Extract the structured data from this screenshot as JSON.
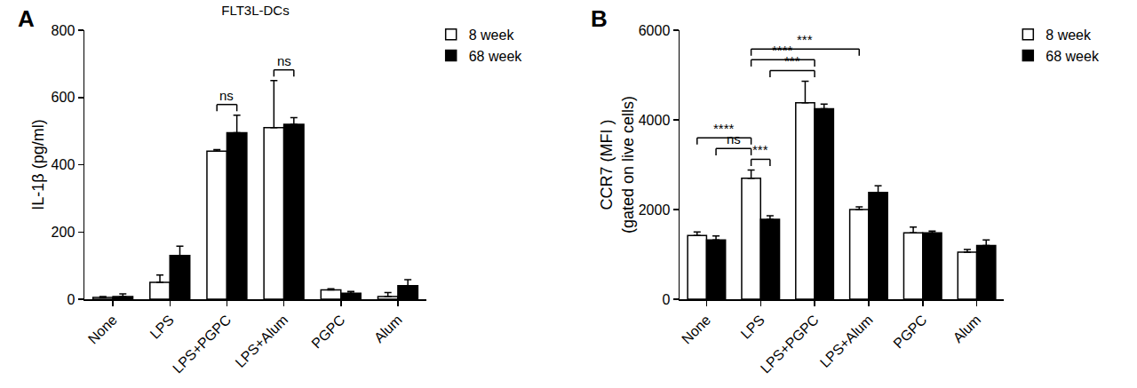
{
  "chart_data": [
    {
      "type": "bar",
      "title": "FLT3L-DCs",
      "annotations": [
        {
          "text": "A"
        }
      ],
      "ylabel": [
        "IL-1β (pg/ml)"
      ],
      "categories": [
        "None",
        "LPS",
        "LPS+PGPC",
        "LPS+Alum",
        "PGPC",
        "Alum"
      ],
      "series": [
        {
          "name": "8 week",
          "color": "#ffffff",
          "values": [
            5,
            50,
            440,
            510,
            28,
            8
          ],
          "errors": [
            3,
            22,
            5,
            140,
            3,
            12
          ]
        },
        {
          "name": "68 week",
          "color": "#000000",
          "values": [
            8,
            130,
            495,
            520,
            18,
            40
          ],
          "errors": [
            8,
            28,
            52,
            20,
            5,
            18
          ]
        }
      ],
      "ylim": [
        0,
        800
      ],
      "yticks": [
        0,
        200,
        400,
        600,
        800
      ],
      "grid": false,
      "legend": "right",
      "significance": [
        {
          "from": [
            2,
            0
          ],
          "to": [
            2,
            1
          ],
          "label": "ns"
        },
        {
          "from": [
            3,
            0
          ],
          "to": [
            3,
            1
          ],
          "label": "ns"
        }
      ]
    },
    {
      "type": "bar",
      "annotations": [
        {
          "text": "B"
        }
      ],
      "ylabel": [
        "CCR7 (MFI )",
        "(gated on live cells)"
      ],
      "categories": [
        "None",
        "LPS",
        "LPS+PGPC",
        "LPS+Alum",
        "PGPC",
        "Alum"
      ],
      "series": [
        {
          "name": "8 week",
          "color": "#ffffff",
          "values": [
            1420,
            2700,
            4380,
            2000,
            1480,
            1050
          ],
          "errors": [
            80,
            180,
            480,
            60,
            130,
            60
          ]
        },
        {
          "name": "68 week",
          "color": "#000000",
          "values": [
            1320,
            1780,
            4250,
            2380,
            1480,
            1200
          ],
          "errors": [
            90,
            80,
            100,
            150,
            40,
            120
          ]
        }
      ],
      "ylim": [
        0,
        6000
      ],
      "yticks": [
        0,
        2000,
        4000,
        6000
      ],
      "grid": false,
      "legend": "right",
      "significance": [
        {
          "from": [
            0,
            0
          ],
          "to": [
            1,
            0
          ],
          "label": "****"
        },
        {
          "from": [
            0,
            1
          ],
          "to": [
            1,
            0
          ],
          "label": "ns"
        },
        {
          "from": [
            1,
            0
          ],
          "to": [
            1,
            1
          ],
          "label": "***"
        },
        {
          "from": [
            1,
            1
          ],
          "to": [
            2,
            null
          ],
          "label": "***"
        },
        {
          "from": [
            1,
            0
          ],
          "to": [
            2,
            null
          ],
          "label": "****"
        },
        {
          "from": [
            1,
            0
          ],
          "to": [
            3,
            0
          ],
          "label": "***"
        }
      ]
    }
  ]
}
